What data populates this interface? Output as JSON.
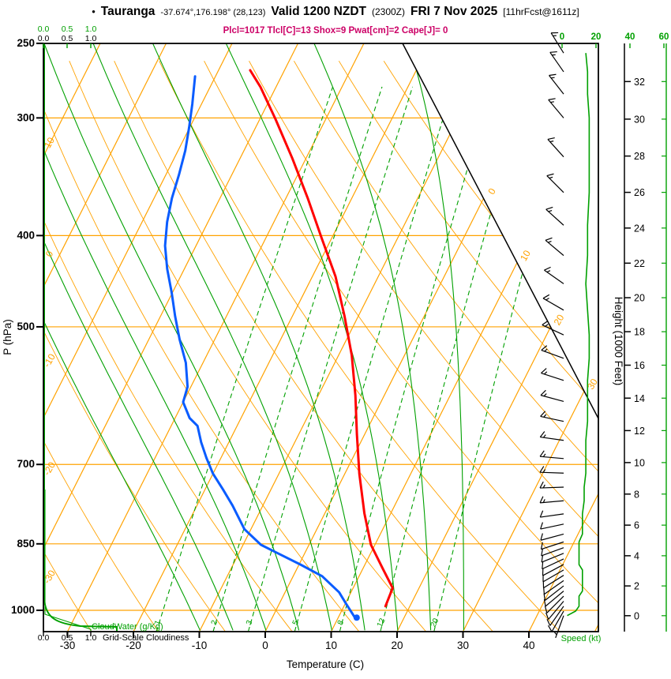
{
  "header": {
    "bullet": "•",
    "station": "Tauranga",
    "coords": "-37.674°,176.198° (28,123)",
    "valid": "Valid 1200 NZDT",
    "valid_zulu": "(2300Z)",
    "date": "FRI 7 Nov 2025",
    "forecast_tag": "[11hrFcst@1611z]",
    "params": "Plcl=1017 Tlcl[C]=13 Shox=9 Pwat[cm]=2 Cape[J]= 0"
  },
  "axes": {
    "pressure_label": "P (hPa)",
    "pressure_ticks": [
      250,
      300,
      400,
      500,
      700,
      850,
      1000
    ],
    "temp_label": "Temperature (C)",
    "temp_ticks": [
      -30,
      -20,
      -10,
      0,
      10,
      20,
      30,
      40
    ],
    "height_label": "Height (1000 Feet)",
    "height_ticks": [
      0,
      2,
      4,
      6,
      8,
      10,
      12,
      14,
      16,
      18,
      20,
      22,
      24,
      26,
      28,
      30,
      32
    ],
    "speed_label": "Speed (kt)",
    "speed_ticks": [
      0,
      20,
      40,
      60
    ],
    "cloud_scale_ticks": [
      "0.0",
      "0.5",
      "1.0"
    ],
    "cloudwater_label": "CloudWater (g/Kg)",
    "cloudiness_label": "Grid-Scale Cloudiness",
    "isotherm_edge_labels": [
      0,
      10,
      20,
      30
    ],
    "dry_adiabat_edge_labels": [
      10,
      0,
      -10,
      -20,
      -30
    ],
    "mixing_ratio_labels": [
      1,
      2,
      3,
      5,
      8,
      12,
      20
    ]
  },
  "colors": {
    "grid_orange": "#ffa200",
    "moist_green": "#00a000",
    "temp_red": "#ff0000",
    "dewpoint_blue": "#0a5cff",
    "params_magenta": "#cc0066",
    "frame_black": "#000000"
  },
  "chart_data": {
    "type": "line",
    "subtype": "skew-t log-p sounding",
    "title": "Tauranga sounding valid 1200 NZDT FRI 7 Nov 2025",
    "xlabel": "Temperature (C)",
    "ylabel": "P (hPa)",
    "x_range_c": [
      -35,
      45
    ],
    "p_range_hpa": [
      1053,
      250
    ],
    "temperature_profile": {
      "columns": [
        "pressure_hpa",
        "temp_c"
      ],
      "rows": [
        [
          990,
          16.3
        ],
        [
          947,
          16.0
        ],
        [
          903,
          13.0
        ],
        [
          852,
          9.4
        ],
        [
          789,
          6.0
        ],
        [
          716,
          2.2
        ],
        [
          650,
          -1.2
        ],
        [
          591,
          -4.4
        ],
        [
          536,
          -8.0
        ],
        [
          487,
          -12.1
        ],
        [
          442,
          -16.5
        ],
        [
          402,
          -21.6
        ],
        [
          365,
          -26.7
        ],
        [
          331,
          -32.1
        ],
        [
          301,
          -37.6
        ],
        [
          278,
          -42.4
        ],
        [
          267,
          -45.2
        ]
      ]
    },
    "dewpoint_profile": {
      "columns": [
        "pressure_hpa",
        "dewpoint_c"
      ],
      "rows": [
        [
          1019,
          12.6
        ],
        [
          985,
          10.2
        ],
        [
          957,
          8.2
        ],
        [
          920,
          4.4
        ],
        [
          894,
          0.2
        ],
        [
          868,
          -4.4
        ],
        [
          852,
          -7.3
        ],
        [
          820,
          -11.0
        ],
        [
          774,
          -14.6
        ],
        [
          744,
          -17.3
        ],
        [
          716,
          -20.0
        ],
        [
          689,
          -22.2
        ],
        [
          663,
          -24.2
        ],
        [
          637,
          -26.0
        ],
        [
          625,
          -27.8
        ],
        [
          601,
          -30.0
        ],
        [
          579,
          -30.5
        ],
        [
          546,
          -32.6
        ],
        [
          516,
          -35.3
        ],
        [
          487,
          -37.8
        ],
        [
          460,
          -40.1
        ],
        [
          434,
          -42.6
        ],
        [
          410,
          -44.7
        ],
        [
          387,
          -46.2
        ],
        [
          365,
          -47.3
        ],
        [
          345,
          -48.0
        ],
        [
          325,
          -48.9
        ],
        [
          307,
          -50.1
        ],
        [
          290,
          -51.4
        ],
        [
          271,
          -53.1
        ]
      ]
    },
    "parcel_marker": {
      "pressure_hpa": 1018,
      "temp_c": 12.8
    },
    "wind_barbs": {
      "columns": [
        "pressure_hpa",
        "speed_kt",
        "dir_deg"
      ],
      "rows": [
        [
          1013,
          3,
          200
        ],
        [
          1002,
          8,
          210
        ],
        [
          990,
          10,
          215
        ],
        [
          978,
          10,
          220
        ],
        [
          966,
          10,
          225
        ],
        [
          954,
          12,
          230
        ],
        [
          942,
          12,
          232
        ],
        [
          930,
          12,
          235
        ],
        [
          918,
          12,
          238
        ],
        [
          906,
          12,
          240
        ],
        [
          894,
          10,
          242
        ],
        [
          882,
          10,
          245
        ],
        [
          870,
          10,
          248
        ],
        [
          858,
          10,
          250
        ],
        [
          846,
          10,
          252
        ],
        [
          830,
          12,
          255
        ],
        [
          810,
          12,
          258
        ],
        [
          790,
          12,
          262
        ],
        [
          765,
          13,
          265
        ],
        [
          740,
          13,
          268
        ],
        [
          715,
          14,
          272
        ],
        [
          690,
          14,
          275
        ],
        [
          660,
          14,
          278
        ],
        [
          630,
          15,
          282
        ],
        [
          600,
          15,
          285
        ],
        [
          570,
          15,
          288
        ],
        [
          540,
          16,
          290
        ],
        [
          510,
          16,
          295
        ],
        [
          480,
          15,
          300
        ],
        [
          450,
          14,
          305
        ],
        [
          420,
          15,
          310
        ],
        [
          390,
          15,
          312
        ],
        [
          360,
          16,
          315
        ],
        [
          330,
          16,
          318
        ],
        [
          300,
          16,
          320
        ],
        [
          283,
          15,
          322
        ],
        [
          268,
          15,
          325
        ],
        [
          256,
          14,
          328
        ]
      ]
    },
    "indices": {
      "Plcl": 1017,
      "Tlcl_C": 13,
      "Shox": 9,
      "Pwat_cm": 2,
      "Cape_J": 0
    }
  }
}
